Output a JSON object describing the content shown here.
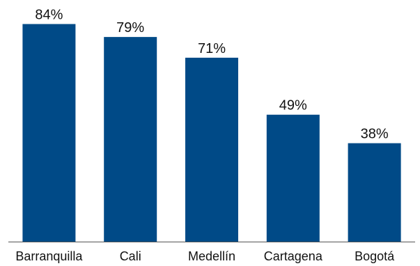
{
  "chart_data": {
    "type": "bar",
    "categories": [
      "Barranquilla",
      "Cali",
      "Medellín",
      "Cartagena",
      "Bogotá"
    ],
    "values": [
      84,
      79,
      71,
      49,
      38
    ],
    "value_labels": [
      "84%",
      "79%",
      "71%",
      "49%",
      "38%"
    ],
    "ylim": [
      0,
      100
    ],
    "grid": false,
    "colors": {
      "bar": "#004a87",
      "axis": "#555555"
    }
  }
}
